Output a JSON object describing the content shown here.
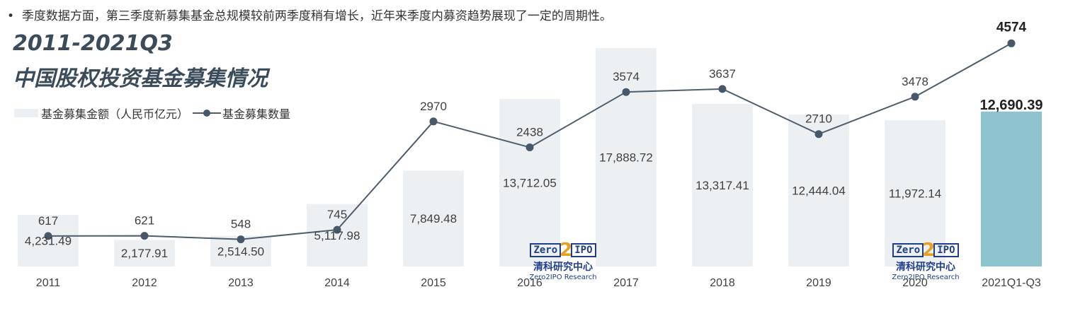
{
  "bullet_text": "季度数据方面，第三季度新募集基金总规模较前两季度稍有增长，近年来季度内募资趋势展现了一定的周期性。",
  "title_line1": "2011-2021Q3",
  "title_line2": "中国股权投资基金募集情况",
  "legend": {
    "amount": "基金募集金额（人民币亿元）",
    "count": "基金募集数量"
  },
  "watermark": {
    "left": "Zero",
    "num": "2",
    "right": "IPO",
    "cn": "清科研究中心",
    "en": "Zero2IPO Research"
  },
  "colors": {
    "bar": "#ecf0f3",
    "bar_highlight": "#8cc3cf",
    "line": "#4e5d6c",
    "marker": "#47586a",
    "title": "#3b4b5a"
  },
  "chart_data": {
    "type": "bar",
    "categories": [
      "2011",
      "2012",
      "2013",
      "2014",
      "2015",
      "2016",
      "2017",
      "2018",
      "2019",
      "2020",
      "2021Q1-Q3"
    ],
    "series": [
      {
        "name": "基金募集金额（人民币亿元）",
        "type": "bar",
        "values": [
          4231.49,
          2177.91,
          2514.5,
          5117.98,
          7849.48,
          13712.05,
          17888.72,
          13317.41,
          12444.04,
          11972.14,
          12690.39
        ],
        "labels": [
          "4,231.49",
          "2,177.91",
          "2,514.50",
          "5,117.98",
          "7,849.48",
          "13,712.05",
          "17,888.72",
          "13,317.41",
          "12,444.04",
          "11,972.14",
          "12,690.39"
        ]
      },
      {
        "name": "基金募集数量",
        "type": "line",
        "values": [
          617,
          621,
          548,
          745,
          2970,
          2438,
          3574,
          3637,
          2710,
          3478,
          4574
        ],
        "labels": [
          "617",
          "621",
          "548",
          "745",
          "2970",
          "2438",
          "3574",
          "3637",
          "2710",
          "3478",
          "4574"
        ]
      }
    ],
    "highlight_index": 10,
    "legend_position": "top-left"
  }
}
